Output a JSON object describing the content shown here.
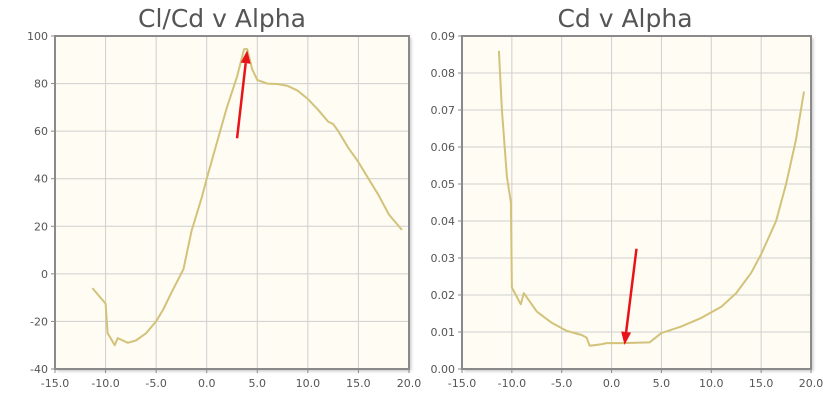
{
  "colors": {
    "line": "#d2c27a",
    "arrow": "#e8141a",
    "plot_bg": "#fffcf3",
    "grid": "#cfcfcf",
    "frame": "#8a8a8a"
  },
  "chart_data": [
    {
      "type": "line",
      "title": "Cl/Cd v Alpha",
      "xlabel": "",
      "ylabel": "",
      "xlim": [
        -15,
        20
      ],
      "ylim": [
        -40,
        100
      ],
      "xticks": [
        "-15.0",
        "-10.0",
        "-5.0",
        "0.0",
        "5.0",
        "10.0",
        "15.0",
        "20.0"
      ],
      "yticks": [
        "-40",
        "-20",
        "0",
        "20",
        "40",
        "60",
        "80",
        "100"
      ],
      "grid": true,
      "series": [
        {
          "name": "Cl/Cd",
          "x": [
            -11.3,
            -10.5,
            -10,
            -9.8,
            -9.5,
            -9.1,
            -8.8,
            -7.8,
            -7,
            -6,
            -5,
            -4.3,
            -3.5,
            -2.3,
            -1.5,
            -0.5,
            0,
            1,
            2,
            3,
            3.7,
            4,
            4.5,
            5,
            6,
            7,
            8,
            9,
            10,
            11,
            12,
            12.5,
            13,
            14,
            15,
            16,
            17,
            18,
            19.3
          ],
          "y": [
            -6,
            -10,
            -12.5,
            -25,
            -27,
            -30,
            -27,
            -29,
            -28,
            -25,
            -20,
            -15,
            -8,
            2,
            18,
            32,
            40,
            55,
            70,
            83,
            94.5,
            94.5,
            86,
            81.5,
            80,
            79.8,
            79,
            77,
            73.5,
            69,
            64,
            63,
            60,
            53,
            47,
            40,
            33,
            25,
            18.5
          ]
        }
      ],
      "annotations": [
        {
          "type": "arrow",
          "from": [
            3.0,
            57
          ],
          "to": [
            4.0,
            94
          ]
        }
      ]
    },
    {
      "type": "line",
      "title": "Cd v Alpha",
      "xlabel": "",
      "ylabel": "",
      "xlim": [
        -15,
        20
      ],
      "ylim": [
        0,
        0.09
      ],
      "xticks": [
        "-15.0",
        "-10.0",
        "-5.0",
        "0.0",
        "5.0",
        "10.0",
        "15.0",
        "20.0"
      ],
      "yticks": [
        "0.00",
        "0.01",
        "0.02",
        "0.03",
        "0.04",
        "0.05",
        "0.06",
        "0.07",
        "0.08",
        "0.09"
      ],
      "grid": true,
      "series": [
        {
          "name": "Cd",
          "x": [
            -11.3,
            -11,
            -10.5,
            -10.1,
            -10,
            -9.1,
            -8.8,
            -7.5,
            -6,
            -4.5,
            -3,
            -2.5,
            -2.2,
            -1,
            -0.5,
            1,
            3.8,
            5,
            7,
            9,
            11,
            12.5,
            14,
            15,
            16.5,
            17.5,
            18.5,
            19.3
          ],
          "y": [
            0.086,
            0.07,
            0.052,
            0.045,
            0.022,
            0.0175,
            0.0205,
            0.0155,
            0.0125,
            0.0103,
            0.0092,
            0.0085,
            0.0063,
            0.0067,
            0.007,
            0.007,
            0.0072,
            0.0097,
            0.0115,
            0.0138,
            0.0168,
            0.0205,
            0.026,
            0.031,
            0.04,
            0.05,
            0.062,
            0.075
          ]
        }
      ],
      "annotations": [
        {
          "type": "arrow",
          "from": [
            2.5,
            0.0325
          ],
          "to": [
            1.3,
            0.0065
          ]
        }
      ]
    }
  ]
}
